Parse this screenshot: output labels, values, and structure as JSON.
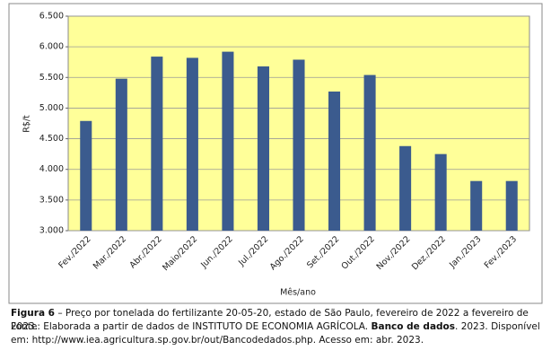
{
  "chart_data": {
    "type": "bar",
    "categories": [
      "Fev./2022",
      "Mar./2022",
      "Abr./2022",
      "Maio/2022",
      "Jun./2022",
      "Jul./2022",
      "Ago./2022",
      "Set./2022",
      "Out./2022",
      "Nov./2022",
      "Dez./2022",
      "Jan./2023",
      "Fev./2023"
    ],
    "values": [
      4790,
      5480,
      5840,
      5820,
      5920,
      5680,
      5790,
      5270,
      5540,
      4380,
      4250,
      3810,
      3810
    ],
    "color": "#3b5b8e",
    "ylabel": "R$/t",
    "xlabel": "Mês/ano",
    "ylim": [
      3000,
      6500
    ],
    "yticks": [
      {
        "value": 3000,
        "label": "3.000"
      },
      {
        "value": 3500,
        "label": "3.500"
      },
      {
        "value": 4000,
        "label": "4.000"
      },
      {
        "value": 4500,
        "label": "4.500"
      },
      {
        "value": 5000,
        "label": "5.000"
      },
      {
        "value": 5500,
        "label": "5.500"
      },
      {
        "value": 6000,
        "label": "6.000"
      },
      {
        "value": 6500,
        "label": "6.500"
      }
    ],
    "grid": true,
    "plot_background": "#ffff99"
  },
  "caption": {
    "label": "Figura 6",
    "text": " – Preço por tonelada do fertilizante 20-05-20, estado de São Paulo, fevereiro de 2022 a fevereiro de 2023."
  },
  "source": {
    "before": "Fonte: Elaborada a partir de dados de INSTITUTO DE ECONOMIA AGRÍCOLA. ",
    "bold": "Banco de dados",
    "after": ". 2023. Disponível em: http://www.iea.agricultura.sp.gov.br/out/Bancodedados.php. Acesso em: abr. 2023."
  }
}
